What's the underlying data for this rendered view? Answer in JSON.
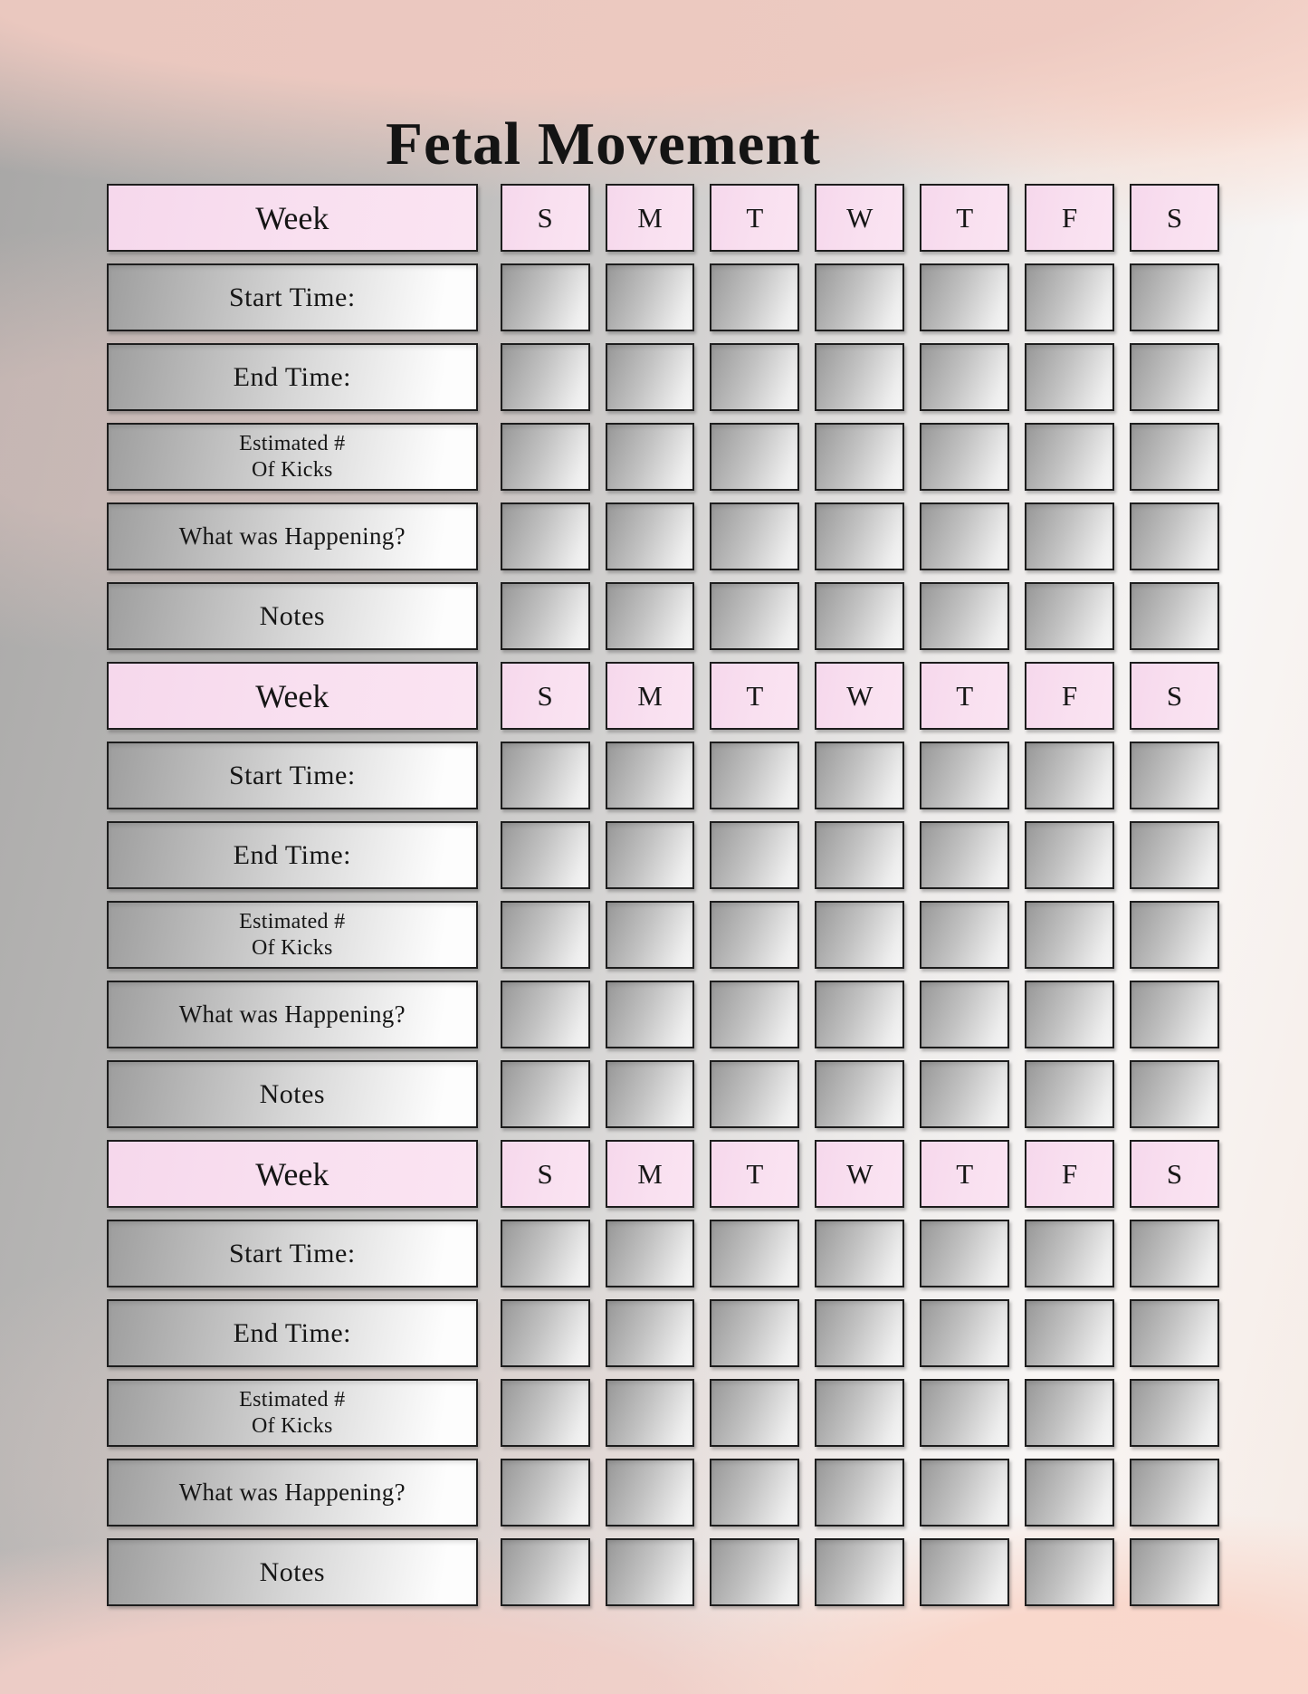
{
  "title": "Fetal Movement",
  "colors": {
    "header_pink": "#f8def0",
    "cell_silver_dark": "#989898",
    "cell_silver_light": "#f7f7f7",
    "cell_border": "#1d1d1d",
    "background_pink_wash": "#edc9c0",
    "background_gray": "#a7a6a5",
    "text": "#141414"
  },
  "blocks": [
    {
      "week_label": "Week",
      "day_headers": [
        "S",
        "M",
        "T",
        "W",
        "T",
        "F",
        "S"
      ],
      "rows": [
        {
          "label": "Start Time:"
        },
        {
          "label": "End Time:"
        },
        {
          "label": "Estimated #",
          "label2": "Of Kicks"
        },
        {
          "label": "What was Happening?"
        },
        {
          "label": "Notes"
        }
      ]
    },
    {
      "week_label": "Week",
      "day_headers": [
        "S",
        "M",
        "T",
        "W",
        "T",
        "F",
        "S"
      ],
      "rows": [
        {
          "label": "Start Time:"
        },
        {
          "label": "End Time:"
        },
        {
          "label": "Estimated #",
          "label2": "Of Kicks"
        },
        {
          "label": "What was Happening?"
        },
        {
          "label": "Notes"
        }
      ]
    },
    {
      "week_label": "Week",
      "day_headers": [
        "S",
        "M",
        "T",
        "W",
        "T",
        "F",
        "S"
      ],
      "rows": [
        {
          "label": "Start Time:"
        },
        {
          "label": "End Time:"
        },
        {
          "label": "Estimated #",
          "label2": "Of Kicks"
        },
        {
          "label": "What was Happening?"
        },
        {
          "label": "Notes"
        }
      ]
    }
  ]
}
